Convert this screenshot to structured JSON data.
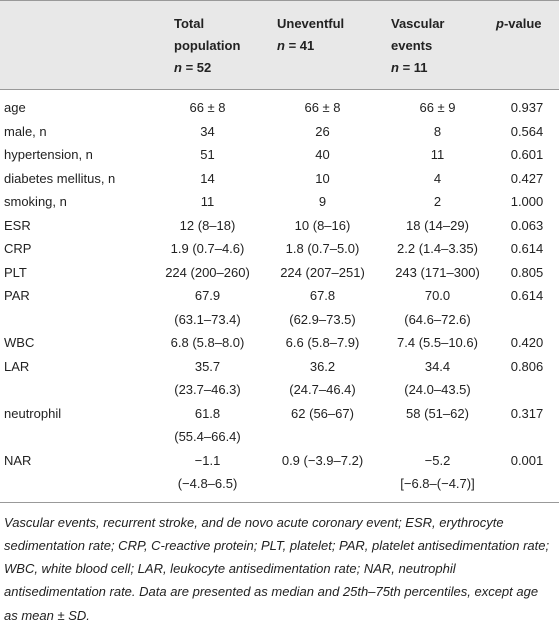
{
  "table": {
    "header": [
      {
        "title": ""
      },
      {
        "title": "Total population",
        "n_symbol": "n",
        "n_value": "= 52"
      },
      {
        "title": "Uneventful",
        "n_symbol": "n",
        "n_value": "= 41"
      },
      {
        "title": "Vascular events",
        "n_symbol": "n",
        "n_value": "= 11"
      },
      {
        "p_symbol": "p",
        "title": "-value"
      }
    ],
    "rows": [
      [
        "age",
        "66 ± 8",
        "66 ± 8",
        "66 ± 9",
        "0.937"
      ],
      [
        "male, n",
        "34",
        "26",
        "8",
        "0.564"
      ],
      [
        "hypertension, n",
        "51",
        "40",
        "11",
        "0.601"
      ],
      [
        "diabetes mellitus, n",
        "14",
        "10",
        "4",
        "0.427"
      ],
      [
        "smoking, n",
        "11",
        "9",
        "2",
        "1.000"
      ],
      [
        "ESR",
        "12 (8–18)",
        "10 (8–16)",
        "18 (14–29)",
        "0.063"
      ],
      [
        "CRP",
        "1.9 (0.7–4.6)",
        "1.8 (0.7–5.0)",
        "2.2 (1.4–3.35)",
        "0.614"
      ],
      [
        "PLT",
        "224 (200–260)",
        "224 (207–251)",
        "243 (171–300)",
        "0.805"
      ],
      [
        "PAR",
        [
          "67.9",
          "(63.1–73.4)"
        ],
        [
          "67.8",
          "(62.9–73.5)"
        ],
        [
          "70.0",
          "(64.6–72.6)"
        ],
        "0.614"
      ],
      [
        "WBC",
        "6.8 (5.8–8.0)",
        "6.6 (5.8–7.9)",
        "7.4 (5.5–10.6)",
        "0.420"
      ],
      [
        "LAR",
        [
          "35.7",
          "(23.7–46.3)"
        ],
        [
          "36.2",
          "(24.7–46.4)"
        ],
        [
          "34.4",
          "(24.0–43.5)"
        ],
        "0.806"
      ],
      [
        "neutrophil",
        [
          "61.8",
          "(55.4–66.4)"
        ],
        "62 (56–67)",
        "58 (51–62)",
        "0.317"
      ],
      [
        "NAR",
        [
          "−1.1",
          "(−4.8–6.5)"
        ],
        "0.9 (−3.9–7.2)",
        [
          "−5.2",
          "[−6.8–(−4.7)]"
        ],
        "0.001"
      ]
    ]
  },
  "footnote": "Vascular events, recurrent stroke, and de novo acute coronary event; ESR, erythrocyte sedimentation rate; CRP, C-reactive protein; PLT, platelet; PAR, platelet antisedimentation rate; WBC, white blood cell; LAR, leukocyte antisedimentation rate; NAR, neutrophil antisedimentation rate. Data are presented as median and 25th–75th percentiles, except age as mean ± SD."
}
